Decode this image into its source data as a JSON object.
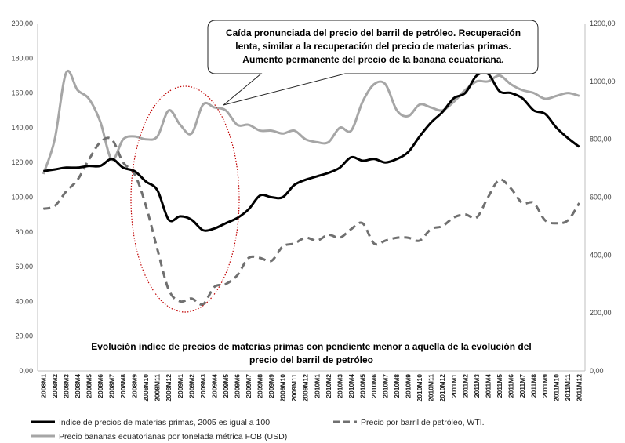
{
  "chart_data": {
    "type": "line",
    "categories": [
      "2008M1",
      "2008M2",
      "2008M3",
      "2008M4",
      "2008M5",
      "2008M6",
      "2008M7",
      "2008M8",
      "2008M9",
      "2008M10",
      "2008M11",
      "2008M12",
      "2009M1",
      "2009M2",
      "2009M3",
      "2009M4",
      "2009M5",
      "2009M6",
      "2009M7",
      "2009M8",
      "2009M9",
      "2009M10",
      "2009M11",
      "2009M12",
      "2010M1",
      "2010M2",
      "2010M3",
      "2010M4",
      "2010M5",
      "2010M6",
      "2010M7",
      "2010M8",
      "2010M9",
      "2010M10",
      "2010M11",
      "2010M12",
      "2011M1",
      "2011M2",
      "2011M3",
      "2011M4",
      "2011M5",
      "2011M6",
      "2011M7",
      "2011M8",
      "2011M9",
      "2011M10",
      "2011M11",
      "2011M12"
    ],
    "y_left_ticks": [
      "0,00",
      "20,00",
      "40,00",
      "60,00",
      "80,00",
      "100,00",
      "120,00",
      "140,00",
      "160,00",
      "180,00",
      "200,00"
    ],
    "y_right_ticks": [
      "0,00",
      "200,00",
      "400,00",
      "600,00",
      "800,00",
      "1000,00",
      "1200,00"
    ],
    "ylim_left": [
      0,
      200
    ],
    "ylim_right": [
      0,
      1200
    ],
    "grid": false,
    "series": [
      {
        "name": "Indice de precios de materias primas, 2005 es igual a 100",
        "axis": "left",
        "style": "solid",
        "color": "#000000",
        "values": [
          115,
          116,
          117,
          117,
          118,
          118,
          122,
          117,
          115,
          109,
          104,
          87,
          89,
          87,
          81,
          82,
          85,
          88,
          93,
          101,
          100,
          100,
          107,
          110,
          112,
          114,
          117,
          123,
          121,
          122,
          120,
          122,
          126,
          135,
          143,
          149,
          157,
          160,
          170,
          171,
          161,
          160,
          157,
          150,
          148,
          140,
          134,
          129
        ]
      },
      {
        "name": "Precio por barril de petróleo, WTI.",
        "axis": "right",
        "style": "dashed",
        "color": "#707070",
        "values": [
          560,
          570,
          620,
          660,
          730,
          790,
          800,
          720,
          680,
          570,
          420,
          280,
          240,
          250,
          230,
          290,
          300,
          330,
          390,
          390,
          380,
          430,
          440,
          460,
          450,
          470,
          460,
          490,
          510,
          440,
          450,
          460,
          460,
          450,
          490,
          500,
          530,
          540,
          530,
          600,
          660,
          630,
          580,
          580,
          520,
          510,
          520,
          580
        ]
      },
      {
        "name": "Precio bananas ecuatorianas por tonelada métrica FOB (USD)",
        "axis": "right",
        "style": "solid",
        "color": "#a6a6a6",
        "values": [
          680,
          800,
          1030,
          970,
          940,
          860,
          730,
          800,
          810,
          800,
          810,
          900,
          850,
          820,
          920,
          910,
          900,
          850,
          850,
          830,
          830,
          820,
          830,
          800,
          790,
          790,
          840,
          830,
          930,
          990,
          990,
          900,
          880,
          920,
          910,
          900,
          930,
          970,
          1000,
          1000,
          1020,
          990,
          970,
          960,
          940,
          950,
          960,
          950
        ]
      }
    ],
    "callout": {
      "lines": [
        "Caída pronunciada del precio del barril de petróleo. Recuperación",
        "lenta, similar a la recuperación del precio de materias primas.",
        "Aumento permanente del precio de la banana ecuatoriana."
      ]
    },
    "annotation": {
      "lines": [
        "Evolución indice de precios de materias primas con pendiente menor a aquella de la evolución del",
        "precio del barril de petróleo"
      ]
    },
    "highlight_color": "#c00000",
    "legend_position": "bottom"
  }
}
